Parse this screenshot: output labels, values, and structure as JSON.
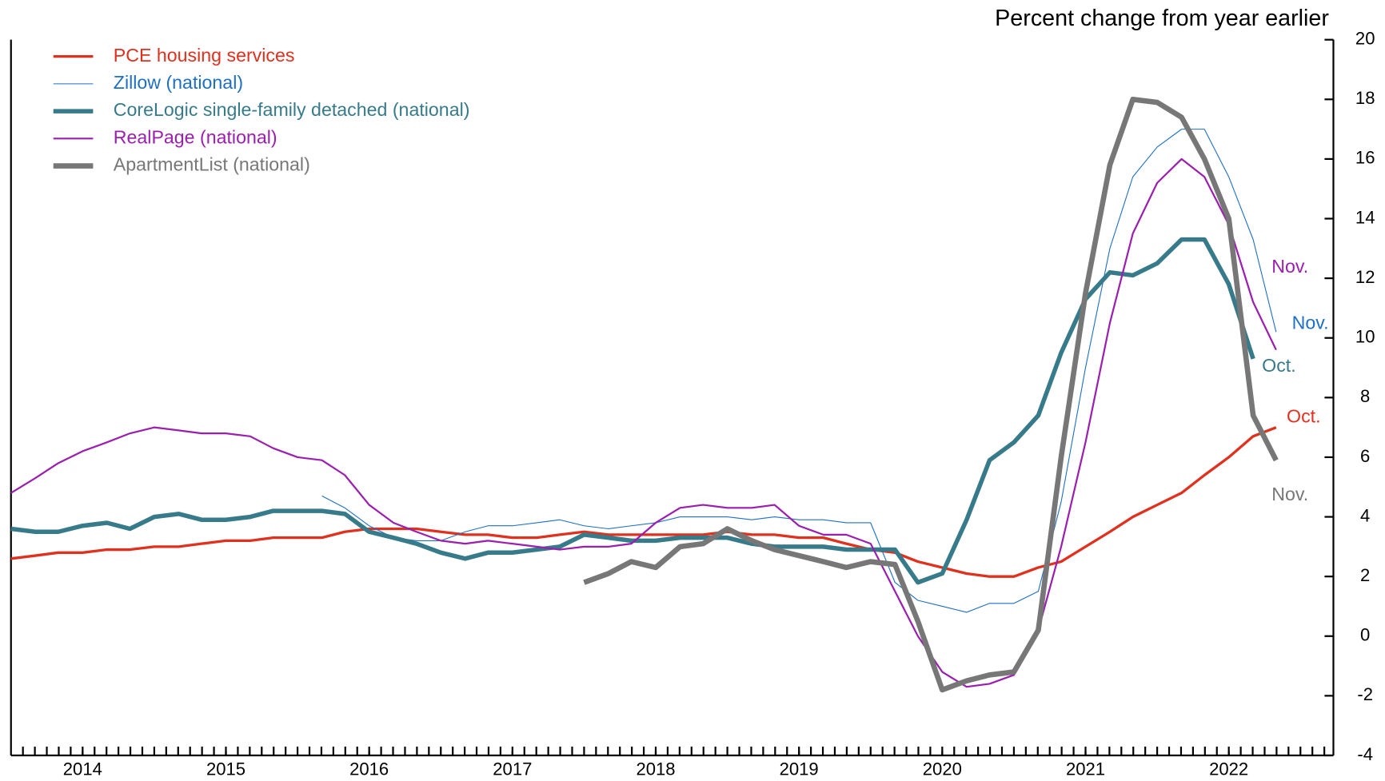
{
  "chart_data": {
    "type": "line",
    "title": "Percent change from year earlier",
    "x": [
      2014,
      2014.17,
      2014.33,
      2014.5,
      2014.67,
      2014.83,
      2015,
      2015.17,
      2015.33,
      2015.5,
      2015.67,
      2015.83,
      2016,
      2016.17,
      2016.33,
      2016.5,
      2016.67,
      2016.83,
      2017,
      2017.17,
      2017.33,
      2017.5,
      2017.67,
      2017.83,
      2018,
      2018.17,
      2018.33,
      2018.5,
      2018.67,
      2018.83,
      2019,
      2019.17,
      2019.33,
      2019.5,
      2019.67,
      2019.83,
      2020,
      2020.17,
      2020.33,
      2020.5,
      2020.67,
      2020.83,
      2021,
      2021.17,
      2021.33,
      2021.5,
      2021.67,
      2021.83,
      2022,
      2022.17,
      2022.33,
      2022.5,
      2022.67,
      2022.83
    ],
    "xlim": [
      2014,
      2023.23
    ],
    "xticks": [
      {
        "value": 2014.5,
        "label": "2014"
      },
      {
        "value": 2015.5,
        "label": "2015"
      },
      {
        "value": 2016.5,
        "label": "2016"
      },
      {
        "value": 2017.5,
        "label": "2017"
      },
      {
        "value": 2018.5,
        "label": "2018"
      },
      {
        "value": 2019.5,
        "label": "2019"
      },
      {
        "value": 2020.5,
        "label": "2020"
      },
      {
        "value": 2021.5,
        "label": "2021"
      },
      {
        "value": 2022.5,
        "label": "2022"
      }
    ],
    "ylim": [
      -4,
      20
    ],
    "yticks": [
      -4,
      -2,
      0,
      2,
      4,
      6,
      8,
      10,
      12,
      14,
      16,
      18,
      20
    ],
    "series": [
      {
        "name": "PCE housing services",
        "color": "#e0301e",
        "width": 3,
        "end_label": "Oct.",
        "values": [
          2.6,
          2.7,
          2.8,
          2.8,
          2.9,
          2.9,
          3.0,
          3.0,
          3.1,
          3.2,
          3.2,
          3.3,
          3.3,
          3.3,
          3.5,
          3.6,
          3.6,
          3.6,
          3.5,
          3.4,
          3.4,
          3.3,
          3.3,
          3.4,
          3.5,
          3.4,
          3.4,
          3.4,
          3.4,
          3.4,
          3.5,
          3.4,
          3.4,
          3.3,
          3.3,
          3.1,
          2.9,
          2.8,
          2.5,
          2.3,
          2.1,
          2.0,
          2.0,
          2.3,
          2.5,
          3.0,
          3.5,
          4.0,
          4.4,
          4.8,
          5.4,
          6.0,
          6.7,
          7.0
        ]
      },
      {
        "name": "Zillow (national)",
        "color": "#1f6fc5",
        "width": 1,
        "end_label": "Nov.",
        "values": [
          null,
          null,
          null,
          null,
          null,
          null,
          null,
          null,
          null,
          null,
          null,
          null,
          null,
          4.7,
          4.3,
          3.7,
          3.3,
          3.2,
          3.2,
          3.5,
          3.7,
          3.7,
          3.8,
          3.9,
          3.7,
          3.6,
          3.7,
          3.8,
          4.0,
          4.0,
          4.0,
          3.9,
          4.0,
          3.9,
          3.9,
          3.8,
          3.8,
          1.8,
          1.2,
          1.0,
          0.8,
          1.1,
          1.1,
          1.5,
          4.5,
          9.0,
          13.0,
          15.4,
          16.4,
          17.0,
          17.0,
          15.4,
          13.3,
          10.2
        ]
      },
      {
        "name": "CoreLogic single-family detached (national)",
        "color": "#377b8a",
        "width": 5,
        "end_label": "Oct.",
        "values": [
          3.6,
          3.5,
          3.5,
          3.7,
          3.8,
          3.6,
          4.0,
          4.1,
          3.9,
          3.9,
          4.0,
          4.2,
          4.2,
          4.2,
          4.1,
          3.5,
          3.3,
          3.1,
          2.8,
          2.6,
          2.8,
          2.8,
          2.9,
          3.0,
          3.4,
          3.3,
          3.2,
          3.2,
          3.3,
          3.3,
          3.3,
          3.1,
          3.0,
          3.0,
          3.0,
          2.9,
          2.9,
          2.9,
          1.8,
          2.1,
          3.9,
          5.9,
          6.5,
          7.4,
          9.5,
          11.3,
          12.2,
          12.1,
          12.5,
          13.3,
          13.3,
          11.8,
          9.3,
          null
        ]
      },
      {
        "name": "RealPage (national)",
        "color": "#9b1fae",
        "width": 2,
        "end_label": "Nov.",
        "values": [
          4.8,
          5.3,
          5.8,
          6.2,
          6.5,
          6.8,
          7.0,
          6.9,
          6.8,
          6.8,
          6.7,
          6.3,
          6.0,
          5.9,
          5.4,
          4.4,
          3.8,
          3.5,
          3.2,
          3.1,
          3.2,
          3.1,
          3.0,
          2.9,
          3.0,
          3.0,
          3.1,
          3.8,
          4.3,
          4.4,
          4.3,
          4.3,
          4.4,
          3.7,
          3.4,
          3.4,
          3.1,
          1.5,
          0.0,
          -1.2,
          -1.7,
          -1.6,
          -1.3,
          0.2,
          3.0,
          6.5,
          10.5,
          13.5,
          15.2,
          16.0,
          15.4,
          13.8,
          11.2,
          9.6
        ]
      },
      {
        "name": "ApartmentList (national)",
        "color": "#777777",
        "width": 6,
        "end_label": "Nov.",
        "values": [
          null,
          null,
          null,
          null,
          null,
          null,
          null,
          null,
          null,
          null,
          null,
          null,
          null,
          null,
          null,
          null,
          null,
          null,
          null,
          null,
          null,
          null,
          null,
          null,
          1.8,
          2.1,
          2.5,
          2.3,
          3.0,
          3.1,
          3.6,
          3.2,
          2.9,
          2.7,
          2.5,
          2.3,
          2.5,
          2.4,
          0.5,
          -1.8,
          -1.5,
          -1.3,
          -1.2,
          0.2,
          6.0,
          11.5,
          15.8,
          18.0,
          17.9,
          17.4,
          16.0,
          14.0,
          7.4,
          5.9
        ]
      }
    ],
    "legend": "upper left"
  }
}
